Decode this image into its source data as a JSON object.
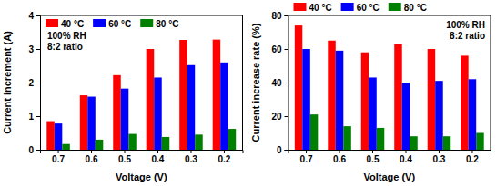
{
  "chart_data": [
    {
      "type": "bar",
      "x_label": "Voltage (V)",
      "y_label": "Current increment (A)",
      "categories": [
        "0.7",
        "0.6",
        "0.5",
        "0.4",
        "0.3",
        "0.2"
      ],
      "series": [
        {
          "name": "40 °C",
          "color": "#ff0000",
          "values": [
            0.85,
            1.62,
            2.22,
            3.0,
            3.27,
            3.28
          ]
        },
        {
          "name": "60 °C",
          "color": "#0000ff",
          "values": [
            0.78,
            1.58,
            1.82,
            2.15,
            2.52,
            2.6
          ]
        },
        {
          "name": "80 °C",
          "color": "#008000",
          "values": [
            0.17,
            0.3,
            0.47,
            0.38,
            0.45,
            0.62
          ]
        }
      ],
      "annotations": [
        "100% RH",
        "8:2 ratio"
      ],
      "ylim": [
        0,
        4
      ],
      "yticks": [
        0,
        1,
        2,
        3,
        4
      ],
      "grid": false,
      "legend": "upper left"
    },
    {
      "type": "bar",
      "x_label": "Voltage (V)",
      "y_label": "Current increase rate (%)",
      "categories": [
        "0.7",
        "0.6",
        "0.5",
        "0.4",
        "0.3",
        "0.2"
      ],
      "series": [
        {
          "name": "40 °C",
          "color": "#ff0000",
          "values": [
            74,
            65,
            58,
            63,
            60,
            56
          ]
        },
        {
          "name": "60 °C",
          "color": "#0000ff",
          "values": [
            60,
            59,
            43,
            40,
            41,
            42
          ]
        },
        {
          "name": "80 °C",
          "color": "#008000",
          "values": [
            21,
            14,
            13,
            8,
            8,
            10
          ]
        }
      ],
      "annotations": [
        "100% RH",
        "8:2 ratio"
      ],
      "ylim": [
        0,
        80
      ],
      "yticks": [
        0,
        20,
        40,
        60,
        80
      ],
      "grid": false,
      "legend": "top"
    }
  ]
}
